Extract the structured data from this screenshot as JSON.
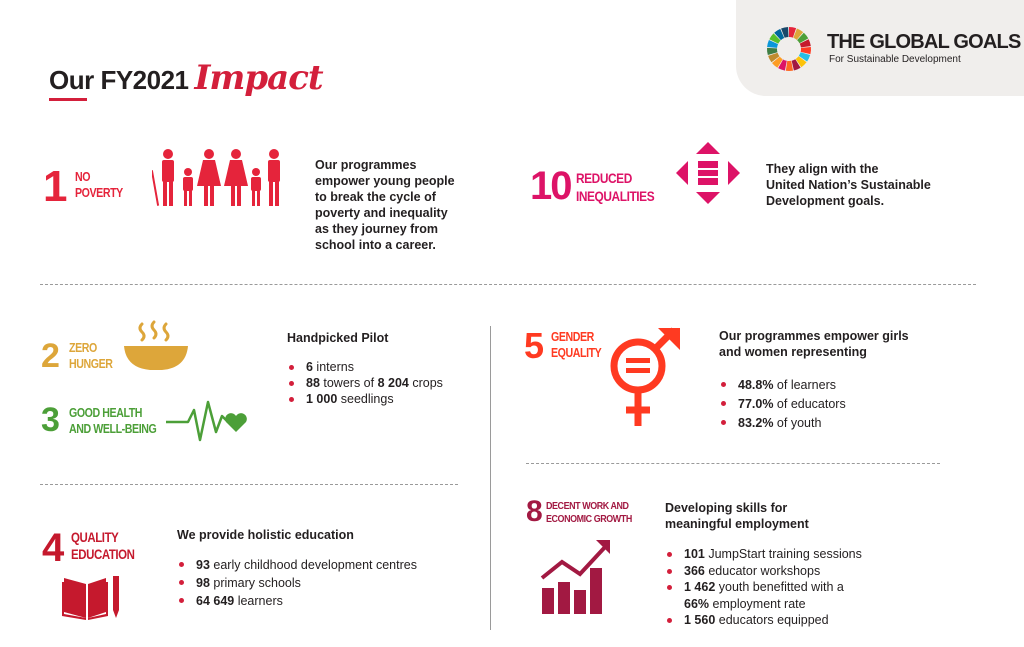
{
  "header": {
    "title_main": "Our FY2021",
    "title_script": "Impact"
  },
  "global_goals": {
    "title": "THE GLOBAL GOALS",
    "subtitle": "For Sustainable Development"
  },
  "goals": {
    "g1": {
      "number": "1",
      "line1": "NO",
      "line2": "POVERTY",
      "color": "#e5243b",
      "icon": "family-icon"
    },
    "g10": {
      "number": "10",
      "line1": "REDUCED",
      "line2": "INEQUALITIES",
      "color": "#dd1367",
      "icon": "equal-arrows-icon"
    },
    "g2": {
      "number": "2",
      "line1": "ZERO",
      "line2": "HUNGER",
      "color": "#dda63a",
      "icon": "bowl-icon"
    },
    "g3": {
      "number": "3",
      "line1": "GOOD HEALTH",
      "line2": "AND WELL-BEING",
      "color": "#4c9f38",
      "icon": "heartbeat-icon"
    },
    "g5": {
      "number": "5",
      "line1": "GENDER",
      "line2": "EQUALITY",
      "color": "#ff3a21",
      "icon": "gender-icon"
    },
    "g4": {
      "number": "4",
      "line1": "QUALITY",
      "line2": "EDUCATION",
      "color": "#c5192d",
      "icon": "book-pencil-icon"
    },
    "g8": {
      "number": "8",
      "line1": "DECENT WORK AND",
      "line2": "ECONOMIC GROWTH",
      "color": "#a21942",
      "icon": "growth-chart-icon"
    }
  },
  "poverty_text": [
    "Our programmes",
    "empower young people",
    "to break the cycle of",
    "poverty and inequality",
    "as they journey from",
    "school into a career."
  ],
  "inequality_text": [
    "They align with the",
    "United Nation’s Sustainable",
    "Development goals."
  ],
  "pilot": {
    "heading": "Handpicked Pilot",
    "items": [
      {
        "bold": "6",
        "rest": " interns"
      },
      {
        "bold": "88",
        "rest": " towers of "
      },
      {
        "bold": "1 000",
        "rest": " seedlings"
      }
    ],
    "crops_bold": "8 204",
    "crops_rest": " crops"
  },
  "gender": {
    "heading": [
      "Our programmes empower girls",
      "and women representing"
    ],
    "items": [
      {
        "bold": "48.8%",
        "rest": " of learners"
      },
      {
        "bold": "77.0%",
        "rest": " of educators"
      },
      {
        "bold": "83.2%",
        "rest": " of youth"
      }
    ]
  },
  "education": {
    "heading": "We provide holistic education",
    "items": [
      {
        "bold": "93",
        "rest": " early childhood development centres"
      },
      {
        "bold": "98",
        "rest": " primary schools"
      },
      {
        "bold": "64 649",
        "rest": " learners"
      }
    ]
  },
  "work": {
    "heading": [
      "Developing skills for",
      "meaningful employment"
    ],
    "items": [
      {
        "bold": "101",
        "rest": " JumpStart training sessions"
      },
      {
        "bold": "366",
        "rest": " educator workshops"
      },
      {
        "bold": "1 462",
        "rest": " youth benefitted with a"
      },
      {
        "bold": "66%",
        "rest": " employment rate"
      },
      {
        "bold": "1 560",
        "rest": " educators equipped"
      }
    ]
  }
}
